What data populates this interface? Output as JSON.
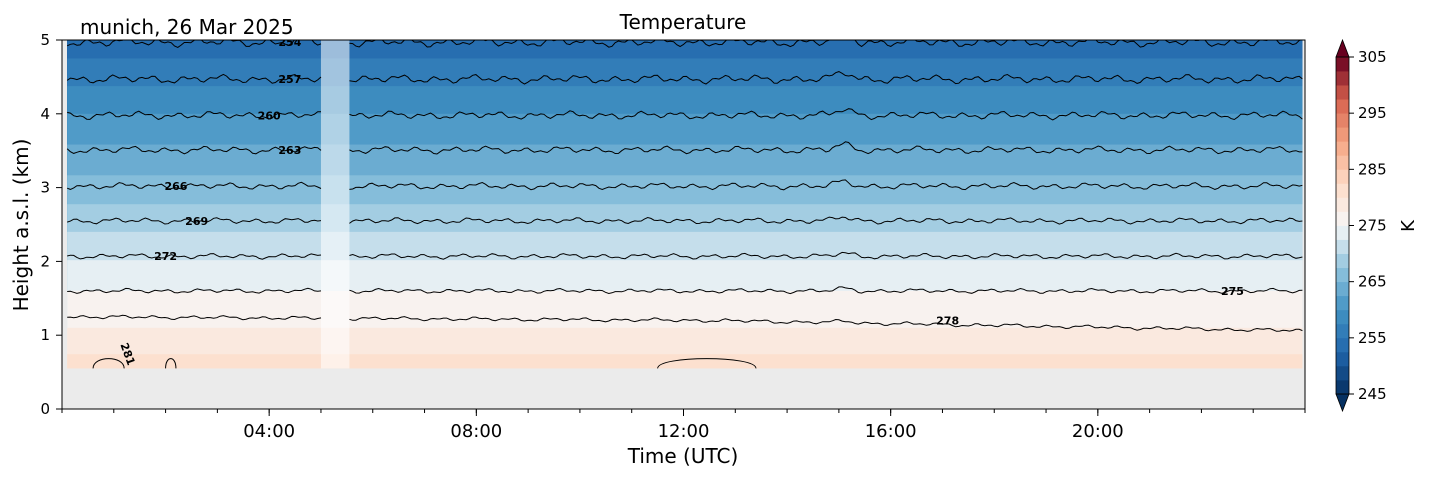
{
  "header": {
    "site_date": "munich, 26 Mar 2025"
  },
  "chart_data": {
    "type": "heatmap",
    "title": "Temperature",
    "xlabel": "Time (UTC)",
    "ylabel": "Height a.s.l. (km)",
    "xlim": [
      0,
      24
    ],
    "ylim": [
      0,
      5
    ],
    "xticks": [
      4,
      8,
      12,
      16,
      20
    ],
    "xticklabels": [
      "04:00",
      "08:00",
      "12:00",
      "16:00",
      "20:00"
    ],
    "yticks": [
      0,
      1,
      2,
      3,
      4,
      5
    ],
    "yticklabels": [
      "0",
      "1",
      "2",
      "3",
      "4",
      "5"
    ],
    "data_bottom_km": 0.55,
    "data_gap_hours": [
      5.0,
      5.55
    ],
    "colorbar": {
      "label": "K",
      "range": [
        245,
        305
      ],
      "ticks": [
        245,
        255,
        265,
        275,
        285,
        295,
        305
      ],
      "ticklabels": [
        "245",
        "255",
        "265",
        "275",
        "285",
        "295",
        "305"
      ],
      "cmap": "RdBu_r",
      "extend": "both"
    },
    "temperature_profile": {
      "height_km": [
        0.55,
        1.0,
        1.6,
        2.1,
        2.55,
        3.0,
        3.5,
        4.0,
        4.45,
        4.9
      ],
      "temperature_K": [
        281.5,
        278,
        275,
        272,
        269,
        266,
        263,
        260,
        257,
        254
      ]
    },
    "contours": [
      {
        "level": 254,
        "label": "254",
        "height_km": 4.97
      },
      {
        "level": 257,
        "label": "257",
        "height_km": 4.47
      },
      {
        "level": 260,
        "label": "260",
        "height_km": 3.98
      },
      {
        "level": 263,
        "label": "263",
        "height_km": 3.51
      },
      {
        "level": 266,
        "label": "266",
        "height_km": 3.02
      },
      {
        "level": 269,
        "label": "269",
        "height_km": 2.55
      },
      {
        "level": 272,
        "label": "272",
        "height_km": 2.07
      },
      {
        "level": 275,
        "label": "275",
        "height_km": 1.6
      },
      {
        "level": 278,
        "label": "278",
        "height_km": 1.2
      },
      {
        "level": 281,
        "label": "281",
        "height_km": 0.7
      }
    ],
    "grid": false,
    "legend": "none"
  }
}
